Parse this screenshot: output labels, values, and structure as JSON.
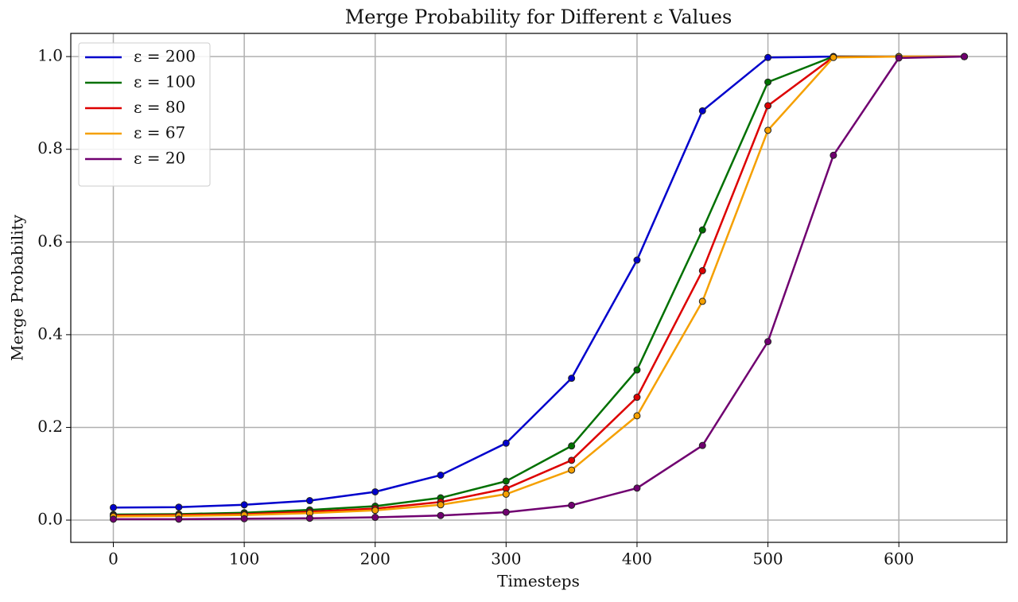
{
  "chart_data": {
    "type": "line",
    "title": "Merge Probability for Different ε Values",
    "x_label": "Timesteps",
    "y_label": "Merge Probability",
    "x": [
      0,
      50,
      100,
      150,
      200,
      250,
      300,
      350,
      400,
      450,
      500,
      550,
      600,
      650
    ],
    "series": [
      {
        "name": "ε = 200",
        "color": "#0000cc",
        "values": [
          0.027,
          0.028,
          0.033,
          0.042,
          0.061,
          0.097,
          0.166,
          0.306,
          0.561,
          0.883,
          0.998,
          1.0,
          1.0,
          1.0
        ]
      },
      {
        "name": "ε = 100",
        "color": "#007000",
        "values": [
          0.012,
          0.013,
          0.016,
          0.022,
          0.03,
          0.048,
          0.084,
          0.16,
          0.324,
          0.626,
          0.945,
          1.0,
          1.0,
          1.0
        ]
      },
      {
        "name": "ε = 80",
        "color": "#dd0000",
        "values": [
          0.01,
          0.011,
          0.013,
          0.018,
          0.025,
          0.039,
          0.068,
          0.129,
          0.265,
          0.538,
          0.894,
          0.999,
          1.0,
          1.0
        ]
      },
      {
        "name": "ε = 67",
        "color": "#f5a000",
        "values": [
          0.008,
          0.009,
          0.011,
          0.015,
          0.021,
          0.033,
          0.056,
          0.108,
          0.225,
          0.472,
          0.841,
          0.998,
          1.0,
          1.0
        ]
      },
      {
        "name": "ε = 20",
        "color": "#700070",
        "values": [
          0.002,
          0.002,
          0.003,
          0.004,
          0.006,
          0.01,
          0.017,
          0.032,
          0.069,
          0.161,
          0.385,
          0.787,
          0.997,
          1.0
        ]
      }
    ],
    "xlim": [
      -32.5,
      682.5
    ],
    "xticks": [
      0,
      100,
      200,
      300,
      400,
      500,
      600
    ],
    "ylim": [
      -0.048,
      1.05
    ],
    "yticks": [
      {
        "value": 0,
        "label": "0.0"
      },
      0.2,
      0.4,
      0.6,
      0.8,
      {
        "value": 1,
        "label": "1.0"
      }
    ],
    "grid": true,
    "legend": "upper left"
  }
}
